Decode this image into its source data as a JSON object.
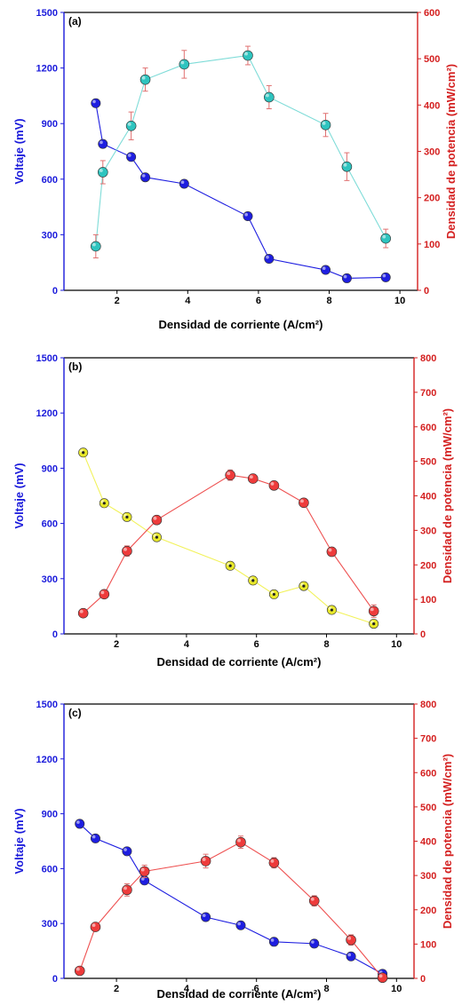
{
  "chart_data": [
    {
      "type": "line",
      "panel_label": "(a)",
      "xlabel": "Densidad de corriente (A/cm²)",
      "ylabel": "Voltaje (mV)",
      "y2label": "Densidad de potencia (mW/cm²)",
      "xlim": [
        0.5,
        10.5
      ],
      "ylim": [
        0,
        1500
      ],
      "y2lim": [
        0,
        600
      ],
      "xticks": [
        2,
        4,
        6,
        8,
        10
      ],
      "yticks": [
        0,
        300,
        600,
        900,
        1200,
        1500
      ],
      "y2ticks": [
        0,
        100,
        200,
        300,
        400,
        500,
        600
      ],
      "colors": {
        "left_axis": "#1a1adb",
        "right_axis": "#d42020",
        "voltage": "#1e1ee0",
        "power": "#2ec4bf",
        "power_line": "#7fdcd8",
        "error": "#e07070"
      },
      "series": [
        {
          "name": "Voltaje",
          "axis": "left",
          "x": [
            1.4,
            1.6,
            2.4,
            2.8,
            3.9,
            5.7,
            6.3,
            7.9,
            8.5,
            9.6
          ],
          "y": [
            1010,
            790,
            720,
            610,
            575,
            400,
            170,
            110,
            65,
            70
          ]
        },
        {
          "name": "Densidad de potencia",
          "axis": "right",
          "x": [
            1.4,
            1.6,
            2.4,
            2.8,
            3.9,
            5.7,
            6.3,
            7.9,
            8.5,
            9.6
          ],
          "y": [
            95,
            255,
            355,
            455,
            488,
            507,
            417,
            357,
            267,
            112
          ],
          "error": [
            25,
            25,
            30,
            25,
            30,
            20,
            25,
            25,
            30,
            20
          ]
        }
      ]
    },
    {
      "type": "line",
      "panel_label": "(b)",
      "xlabel": "Densidad de corriente (A/cm²)",
      "ylabel": "Voltaje (mV)",
      "y2label": "Densidad de potencia (mW/cm²)",
      "xlim": [
        0.5,
        10.5
      ],
      "ylim": [
        0,
        1500
      ],
      "y2lim": [
        0,
        800
      ],
      "xticks": [
        2,
        4,
        6,
        8,
        10
      ],
      "yticks": [
        0,
        300,
        600,
        900,
        1200,
        1500
      ],
      "y2ticks": [
        0,
        100,
        200,
        300,
        400,
        500,
        600,
        700,
        800
      ],
      "colors": {
        "left_axis": "#1a1adb",
        "right_axis": "#d42020",
        "voltage": "#e8e82a",
        "voltage_line": "#f2f25a",
        "power": "#ee3b3b",
        "power_line": "#ee5050",
        "error": "#e07070"
      },
      "series": [
        {
          "name": "Voltaje",
          "axis": "left",
          "x": [
            1.05,
            1.65,
            2.3,
            3.15,
            5.25,
            5.9,
            6.5,
            7.35,
            8.15,
            9.35
          ],
          "y": [
            985,
            710,
            635,
            525,
            370,
            290,
            215,
            260,
            130,
            55
          ]
        },
        {
          "name": "Densidad de potencia",
          "axis": "right",
          "x": [
            1.05,
            1.65,
            2.3,
            3.15,
            5.25,
            5.9,
            6.5,
            7.35,
            8.15,
            9.35
          ],
          "y": [
            60,
            115,
            240,
            330,
            460,
            450,
            430,
            380,
            238,
            66
          ],
          "error": [
            10,
            10,
            15,
            12,
            15,
            12,
            12,
            12,
            10,
            18
          ]
        }
      ]
    },
    {
      "type": "line",
      "panel_label": "(c)",
      "xlabel": "Densidad de corriente (A/cm²)",
      "ylabel": "Voltaje (mV)",
      "y2label": "Densidad de potencia (mW/cm²)",
      "xlim": [
        0.5,
        10.5
      ],
      "ylim": [
        0,
        1500
      ],
      "y2lim": [
        0,
        800
      ],
      "xticks": [
        2,
        4,
        6,
        8,
        10
      ],
      "yticks": [
        0,
        300,
        600,
        900,
        1200,
        1500
      ],
      "y2ticks": [
        0,
        100,
        200,
        300,
        400,
        500,
        600,
        700,
        800
      ],
      "colors": {
        "left_axis": "#1a1adb",
        "right_axis": "#d42020",
        "voltage": "#1e1ee0",
        "power": "#ee3b3b",
        "power_line": "#ee5050",
        "error": "#e07070"
      },
      "series": [
        {
          "name": "Voltaje",
          "axis": "left",
          "x": [
            0.95,
            1.4,
            2.3,
            2.8,
            4.55,
            5.55,
            6.5,
            7.65,
            8.7,
            9.6
          ],
          "y": [
            845,
            765,
            695,
            535,
            335,
            290,
            200,
            190,
            120,
            25
          ]
        },
        {
          "name": "Densidad de potencia",
          "axis": "right",
          "x": [
            0.95,
            1.4,
            2.3,
            2.8,
            4.55,
            5.55,
            6.5,
            7.65,
            8.7,
            9.6
          ],
          "y": [
            22,
            150,
            258,
            312,
            342,
            397,
            337,
            226,
            112,
            2
          ],
          "error": [
            10,
            10,
            18,
            18,
            20,
            18,
            15,
            15,
            15,
            8
          ]
        }
      ]
    }
  ]
}
